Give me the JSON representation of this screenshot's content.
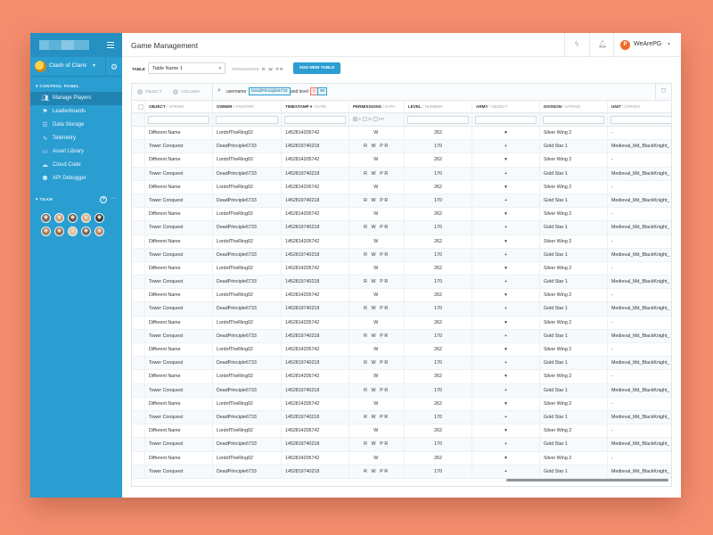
{
  "app": {
    "name": "Clash of Clans"
  },
  "sidebar": {
    "control_panel_title": "CONTROL PANEL",
    "items": [
      {
        "label": "Manage Players",
        "icon": "users-icon",
        "active": true
      },
      {
        "label": "Leaderboards",
        "icon": "flag-icon"
      },
      {
        "label": "Data Storage",
        "icon": "database-icon"
      },
      {
        "label": "Telemetry",
        "icon": "pulse-icon"
      },
      {
        "label": "Asset Library",
        "icon": "folder-icon"
      },
      {
        "label": "Cloud Code",
        "icon": "cloud-icon"
      },
      {
        "label": "API Debugger",
        "icon": "bug-icon"
      }
    ],
    "team_title": "TEAM",
    "team_colors": [
      "#7b6a5c",
      "#c9a07c",
      "#5c5c5c",
      "#d8b08a",
      "#3b3b3b",
      "#a18064",
      "#8f6b52",
      "#e0c09c",
      "#6d6d6d",
      "#b48a68"
    ]
  },
  "header": {
    "title": "Game Management",
    "user_initial": "P",
    "user_name": "WeArePG"
  },
  "toolbar": {
    "table_label": "TABLE",
    "table_value": "Table Name 1",
    "permissions_label": "PERMISSIONS:",
    "permissions_value": "R W PR",
    "add_button": "ADD NEW TABLE"
  },
  "filter_bar": {
    "object_label": "OBJECT",
    "column_label": "COLUMN",
    "query_field": "username",
    "query_value": "DeadPrinciple6733",
    "and_text": "and level",
    "operator": "<",
    "level_value": "90"
  },
  "table": {
    "columns": [
      {
        "name": "OBJECT",
        "type": "/ STRING"
      },
      {
        "name": "OWNER",
        "type": "/ POINTER"
      },
      {
        "name": "TIMESTAMP",
        "type": "/ DATE"
      },
      {
        "name": "PERMISSIONS",
        "type": "/ DATA"
      },
      {
        "name": "LEVEL",
        "type": "/ NUMBER"
      },
      {
        "name": "ARMY",
        "type": "/ OBJECT"
      },
      {
        "name": "DIVISION",
        "type": "/ STRING"
      },
      {
        "name": "UNIT",
        "type": "/ STRING"
      }
    ],
    "perm_filter": [
      "R",
      "W",
      "PR"
    ],
    "row_types": {
      "a": {
        "object": "Different Name",
        "owner": "LordofTheRing02",
        "timestamp": "1452814205742",
        "permissions": "W",
        "level": "262",
        "army": "▾",
        "division": "Silver Wing 2",
        "unit": "-"
      },
      "b": {
        "object": "Tower Conquest",
        "owner": "DeadPrinciple6733",
        "timestamp": "1452819740218",
        "permissions": "R W PR",
        "level": "170",
        "army": "+",
        "division": "Gold Star 1",
        "unit": "Medieval_Md_BlackKnight_"
      }
    },
    "rows": [
      {
        "object": "Different Name",
        "owner": "LordofTheRing02",
        "timestamp": "1452814205742",
        "permissions": "W",
        "level": "262",
        "army": "▾",
        "division": "Silver Wing 2",
        "unit": "-"
      },
      {
        "object": "Tower Conquest",
        "owner": "DeadPrinciple6733",
        "timestamp": "1452819740218",
        "permissions": "R W PR",
        "level": "170",
        "army": "+",
        "division": "Gold Star 1",
        "unit": "Medieval_Md_BlackKnight_"
      },
      {
        "object": "Different Name",
        "owner": "LordofTheRing02",
        "timestamp": "1452814205742",
        "permissions": "W",
        "level": "262",
        "army": "▾",
        "division": "Silver Wing 2",
        "unit": "-"
      },
      {
        "object": "Tower Conquest",
        "owner": "DeadPrinciple6733",
        "timestamp": "1452819740218",
        "permissions": "R W PR",
        "level": "170",
        "army": "+",
        "division": "Gold Star 1",
        "unit": "Medieval_Md_BlackKnight_"
      },
      {
        "object": "Different Name",
        "owner": "LordofTheRing02",
        "timestamp": "1452814205742",
        "permissions": "W",
        "level": "262",
        "army": "▾",
        "division": "Silver Wing 2",
        "unit": "-"
      },
      {
        "object": "Tower Conquest",
        "owner": "DeadPrinciple6733",
        "timestamp": "1452819740218",
        "permissions": "R W PR",
        "level": "170",
        "army": "+",
        "division": "Gold Star 1",
        "unit": "Medieval_Md_BlackKnight_"
      },
      {
        "object": "Different Name",
        "owner": "LordofTheRing02",
        "timestamp": "1452814205742",
        "permissions": "W",
        "level": "262",
        "army": "▾",
        "division": "Silver Wing 2",
        "unit": "-"
      },
      {
        "object": "Tower Conquest",
        "owner": "DeadPrinciple6733",
        "timestamp": "1452819740218",
        "permissions": "R W PR",
        "level": "170",
        "army": "+",
        "division": "Gold Star 1",
        "unit": "Medieval_Md_BlackKnight_"
      },
      {
        "object": "Different Name",
        "owner": "LordofTheRing02",
        "timestamp": "1452814205742",
        "permissions": "W",
        "level": "262",
        "army": "▾",
        "division": "Silver Wing 2",
        "unit": "-"
      },
      {
        "object": "Tower Conquest",
        "owner": "DeadPrinciple6733",
        "timestamp": "1452819740218",
        "permissions": "R W PR",
        "level": "170",
        "army": "+",
        "division": "Gold Star 1",
        "unit": "Medieval_Md_BlackKnight_"
      },
      {
        "object": "Different Name",
        "owner": "LordofTheRing02",
        "timestamp": "1452814205742",
        "permissions": "W",
        "level": "262",
        "army": "▾",
        "division": "Silver Wing 2",
        "unit": "-"
      },
      {
        "object": "Tower Conquest",
        "owner": "DeadPrinciple6733",
        "timestamp": "1452819740218",
        "permissions": "R W PR",
        "level": "170",
        "army": "+",
        "division": "Gold Star 1",
        "unit": "Medieval_Md_BlackKnight_"
      },
      {
        "object": "Different Name",
        "owner": "LordofTheRing02",
        "timestamp": "1452814205742",
        "permissions": "W",
        "level": "262",
        "army": "▾",
        "division": "Silver Wing 2",
        "unit": "-"
      },
      {
        "object": "Tower Conquest",
        "owner": "DeadPrinciple6733",
        "timestamp": "1452819740218",
        "permissions": "R W PR",
        "level": "170",
        "army": "+",
        "division": "Gold Star 1",
        "unit": "Medieval_Md_BlackKnight_"
      },
      {
        "object": "Different Name",
        "owner": "LordofTheRing02",
        "timestamp": "1452814205742",
        "permissions": "W",
        "level": "262",
        "army": "▾",
        "division": "Silver Wing 2",
        "unit": "-"
      },
      {
        "object": "Tower Conquest",
        "owner": "DeadPrinciple6733",
        "timestamp": "1452819740218",
        "permissions": "R W PR",
        "level": "170",
        "army": "+",
        "division": "Gold Star 1",
        "unit": "Medieval_Md_BlackKnight_"
      },
      {
        "object": "Different Name",
        "owner": "LordofTheRing02",
        "timestamp": "1452814205742",
        "permissions": "W",
        "level": "262",
        "army": "▾",
        "division": "Silver Wing 2",
        "unit": "-"
      },
      {
        "object": "Tower Conquest",
        "owner": "DeadPrinciple6733",
        "timestamp": "1452819740218",
        "permissions": "R W PR",
        "level": "170",
        "army": "+",
        "division": "Gold Star 1",
        "unit": "Medieval_Md_BlackKnight_"
      },
      {
        "object": "Different Name",
        "owner": "LordofTheRing02",
        "timestamp": "1452814205742",
        "permissions": "W",
        "level": "262",
        "army": "▾",
        "division": "Silver Wing 2",
        "unit": "-"
      },
      {
        "object": "Tower Conquest",
        "owner": "DeadPrinciple6733",
        "timestamp": "1452819740218",
        "permissions": "R W PR",
        "level": "170",
        "army": "+",
        "division": "Gold Star 1",
        "unit": "Medieval_Md_BlackKnight_"
      },
      {
        "object": "Different Name",
        "owner": "LordofTheRing02",
        "timestamp": "1452814205742",
        "permissions": "W",
        "level": "262",
        "army": "▾",
        "division": "Silver Wing 2",
        "unit": "-"
      },
      {
        "object": "Tower Conquest",
        "owner": "DeadPrinciple6733",
        "timestamp": "1452819740218",
        "permissions": "R W PR",
        "level": "170",
        "army": "+",
        "division": "Gold Star 1",
        "unit": "Medieval_Md_BlackKnight_"
      },
      {
        "object": "Different Name",
        "owner": "LordofTheRing02",
        "timestamp": "1452814205742",
        "permissions": "W",
        "level": "262",
        "army": "▾",
        "division": "Silver Wing 2",
        "unit": "-"
      },
      {
        "object": "Tower Conquest",
        "owner": "DeadPrinciple6733",
        "timestamp": "1452819740218",
        "permissions": "R W PR",
        "level": "170",
        "army": "+",
        "division": "Gold Star 1",
        "unit": "Medieval_Md_BlackKnight_"
      },
      {
        "object": "Different Name",
        "owner": "LordofTheRing02",
        "timestamp": "1452814205742",
        "permissions": "W",
        "level": "262",
        "army": "▾",
        "division": "Silver Wing 2",
        "unit": "-"
      },
      {
        "object": "Tower Conquest",
        "owner": "DeadPrinciple6733",
        "timestamp": "1452819740218",
        "permissions": "R W PR",
        "level": "170",
        "army": "+",
        "division": "Gold Star 1",
        "unit": "Medieval_Md_BlackKnight_"
      }
    ]
  }
}
